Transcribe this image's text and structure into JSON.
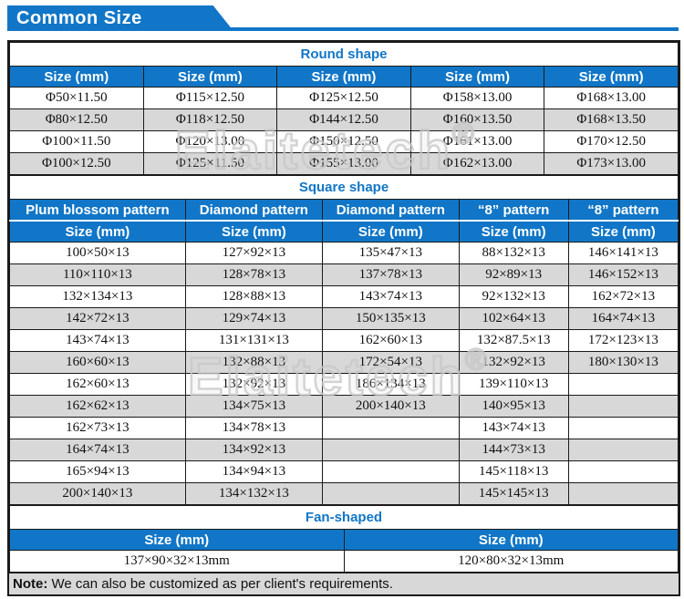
{
  "page_title": "Common Size",
  "colors": {
    "accent_blue": "#1176c7",
    "alt_row_gray": "#d8d8d8",
    "border_black": "#1a1a1a",
    "watermark_gray": "#c9c9c9"
  },
  "watermark": {
    "text": "Elaitetech",
    "reg": "®"
  },
  "round": {
    "title": "Round shape",
    "headers": [
      "Size (mm)",
      "Size (mm)",
      "Size (mm)",
      "Size (mm)",
      "Size (mm)"
    ],
    "rows": [
      [
        "Φ50×11.50",
        "Φ115×12.50",
        "Φ125×12.50",
        "Φ158×13.00",
        "Φ168×13.00"
      ],
      [
        "Φ80×12.50",
        "Φ118×12.50",
        "Φ144×12.50",
        "Φ160×13.50",
        "Φ168×13.50"
      ],
      [
        "Φ100×11.50",
        "Φ120×13.00",
        "Φ150×12.50",
        "Φ161×13.00",
        "Φ170×12.50"
      ],
      [
        "Φ100×12.50",
        "Φ125×11.50",
        "Φ155×13.00",
        "Φ162×13.00",
        "Φ173×13.00"
      ]
    ]
  },
  "square": {
    "title": "Square shape",
    "patterns": [
      "Plum blossom pattern",
      "Diamond pattern",
      "Diamond pattern",
      "“8” pattern",
      "“8” pattern"
    ],
    "headers": [
      "Size (mm)",
      "Size (mm)",
      "Size (mm)",
      "Size (mm)",
      "Size (mm)"
    ],
    "rows": [
      [
        "100×50×13",
        "127×92×13",
        "135×47×13",
        "88×132×13",
        "146×141×13"
      ],
      [
        "110×110×13",
        "128×78×13",
        "137×78×13",
        "92×89×13",
        "146×152×13"
      ],
      [
        "132×134×13",
        "128×88×13",
        "143×74×13",
        "92×132×13",
        "162×72×13"
      ],
      [
        "142×72×13",
        "129×74×13",
        "150×135×13",
        "102×64×13",
        "164×74×13"
      ],
      [
        "143×74×13",
        "131×131×13",
        "162×60×13",
        "132×87.5×13",
        "172×123×13"
      ],
      [
        "160×60×13",
        "132×88×13",
        "172×54×13",
        "132×92×13",
        "180×130×13"
      ],
      [
        "162×60×13",
        "132×92×13",
        "186×134×13",
        "139×110×13",
        ""
      ],
      [
        "162×62×13",
        "134×75×13",
        "200×140×13",
        "140×95×13",
        ""
      ],
      [
        "162×73×13",
        "134×78×13",
        "",
        "143×74×13",
        ""
      ],
      [
        "164×74×13",
        "134×92×13",
        "",
        "144×73×13",
        ""
      ],
      [
        "165×94×13",
        "134×94×13",
        "",
        "145×118×13",
        ""
      ],
      [
        "200×140×13",
        "134×132×13",
        "",
        "145×145×13",
        ""
      ]
    ]
  },
  "fan": {
    "title": "Fan-shaped",
    "headers": [
      "Size (mm)",
      "Size (mm)"
    ],
    "rows": [
      [
        "137×90×32×13mm",
        "120×80×32×13mm"
      ]
    ]
  },
  "note": {
    "label": "Note:",
    "text": " We can also be customized as per client's requirements."
  }
}
